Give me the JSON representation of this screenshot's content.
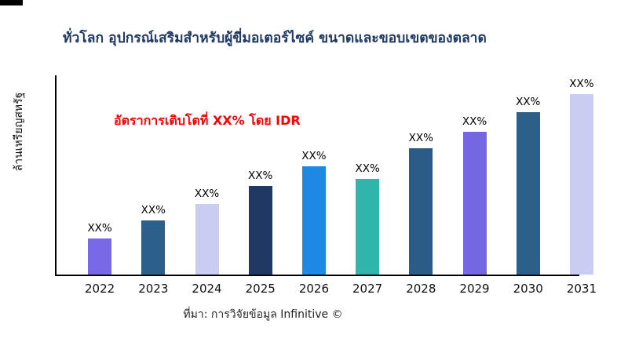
{
  "title": "ทั่วโลก อุปกรณ์เสริมสำหรับผู้ขี่มอเตอร์ไซค์ ขนาดและขอบเขตของตลาด",
  "title_color": "#1f3864",
  "annotation": {
    "text": "อัตราการเติบโตที่ XX% โดย IDR",
    "color": "#ff0000"
  },
  "y_axis_label": "ล้านเหรียญสหรัฐ",
  "source": "ที่มา: การวิจัยข้อมูล Infinitive ©",
  "chart_data": {
    "type": "bar",
    "title": "ทั่วโลก อุปกรณ์เสริมสำหรับผู้ขี่มอเตอร์ไซค์ ขนาดและขอบเขตของตลาด",
    "xlabel": "",
    "ylabel": "ล้านเหรียญสหรัฐ",
    "categories": [
      "2022",
      "2023",
      "2024",
      "2025",
      "2026",
      "2027",
      "2028",
      "2029",
      "2030",
      "2031"
    ],
    "values": [
      20,
      30,
      39,
      49,
      60,
      53,
      70,
      79,
      90,
      100
    ],
    "value_labels": [
      "XX%",
      "XX%",
      "XX%",
      "XX%",
      "XX%",
      "XX%",
      "XX%",
      "XX%",
      "XX%",
      "XX%"
    ],
    "bar_colors": [
      "#7768e8",
      "#2d5f8b",
      "#c9cdf1",
      "#203864",
      "#1e88e5",
      "#2fb5ac",
      "#2b5c88",
      "#7566e4",
      "#2d5f8b",
      "#c9cdf1"
    ],
    "ylim": [
      0,
      110
    ],
    "grid": false,
    "legend": false,
    "annotation": "อัตราการเติบโตที่ XX% โดย IDR",
    "units_note": "values are relative bar heights; actual figures masked as XX% in source image"
  }
}
